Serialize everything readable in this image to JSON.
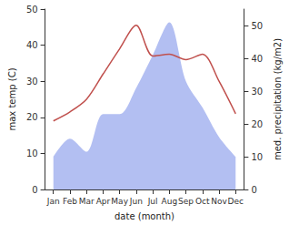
{
  "chart_data": {
    "type": "line",
    "categories": [
      "Jan",
      "Feb",
      "Mar",
      "Apr",
      "May",
      "Jun",
      "Jul",
      "Aug",
      "Sep",
      "Oct",
      "Nov",
      "Dec"
    ],
    "x_label": "date (month)",
    "y_label": "max temp (C)",
    "y2_label": "med. precipitation (kg/m2)",
    "ylim": [
      0,
      50
    ],
    "yticks": [
      0,
      10,
      20,
      30,
      40,
      50
    ],
    "y2lim": [
      0,
      55
    ],
    "y2ticks": [
      0,
      10,
      20,
      30,
      40,
      50
    ],
    "grid": false,
    "series": [
      {
        "name": "med. precipitation",
        "type": "area",
        "axis": "y2",
        "color": "#b3bff2",
        "values": [
          10,
          15.5,
          11.5,
          23,
          23,
          31,
          41,
          51,
          33,
          25,
          16,
          10
        ]
      },
      {
        "name": "max temp",
        "type": "line",
        "axis": "y",
        "color": "#c0504d",
        "values": [
          19,
          21.5,
          25,
          32,
          39,
          45.5,
          37,
          37.5,
          36,
          37.5,
          30,
          21
        ]
      }
    ]
  }
}
